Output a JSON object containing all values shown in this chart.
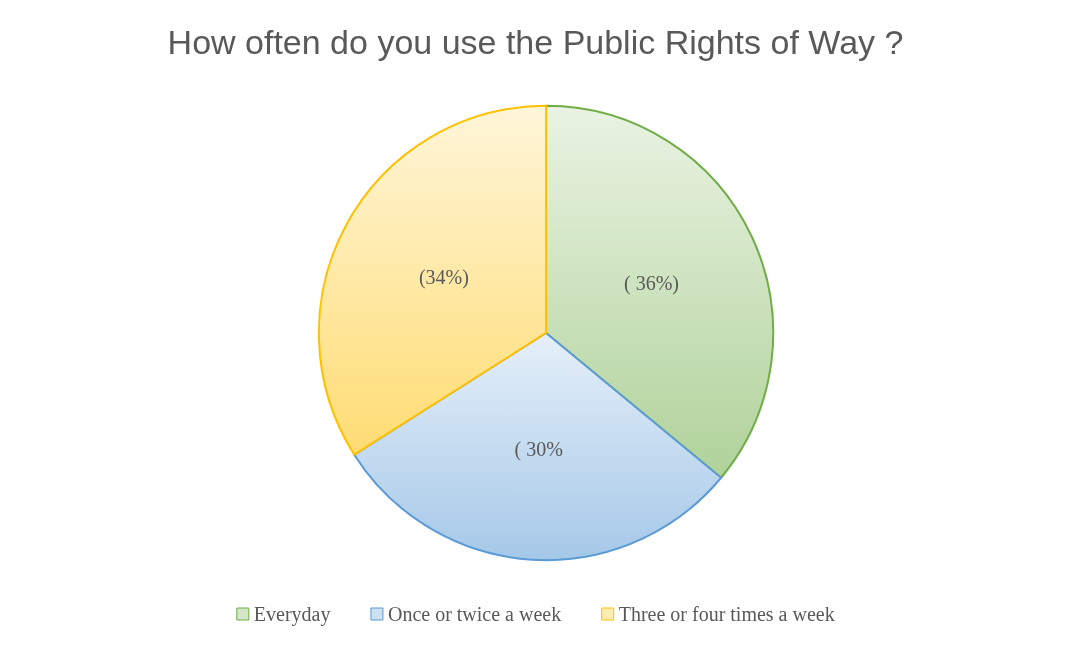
{
  "chart_data": {
    "type": "pie",
    "title": "How often do you use the Public Rights of Way ?",
    "categories": [
      "Everyday",
      "Once or twice a week",
      "Three or four times a week"
    ],
    "values": [
      36,
      30,
      34
    ],
    "colors": [
      "#70ad47",
      "#5b9bd5",
      "#ffc000"
    ],
    "value_labels": [
      "( 36%)",
      "( 30%",
      "(34%)"
    ],
    "legend": "bottom"
  }
}
